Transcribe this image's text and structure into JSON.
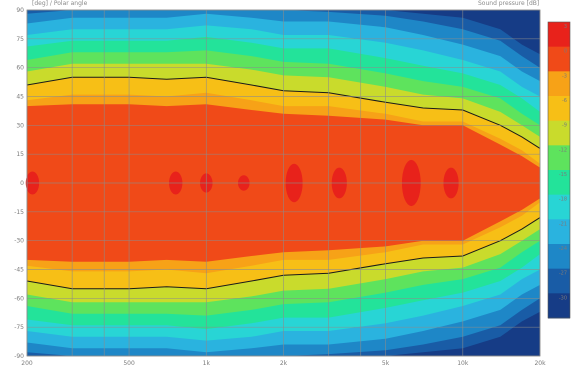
{
  "header": {
    "left_text": "[deg] / Polar angle",
    "right_text": "Sound pressure [dB]"
  },
  "colors": {
    "background": "#ffffff",
    "grid": "#8c8c8c",
    "contour_line": "#1a1a1a",
    "axis_label": "#7a7a7a"
  },
  "chart_data": {
    "type": "heatmap",
    "title": "",
    "xlabel": "",
    "ylabel": "[deg] / Polar angle",
    "colorbar_label": "Sound pressure [dB]",
    "x_scale": "log",
    "xlim": [
      200,
      20000
    ],
    "ylim": [
      -90,
      90
    ],
    "x_tick_values": [
      200,
      500,
      1000,
      2000,
      5000,
      10000,
      20000
    ],
    "x_tick_labels": [
      "200",
      "500",
      "1k",
      "2k",
      "5k",
      "10k",
      "20k"
    ],
    "y_tick_values": [
      90,
      75,
      60,
      45,
      30,
      15,
      0,
      -15,
      -30,
      -45,
      -60,
      -75,
      -90
    ],
    "y_tick_labels": [
      "90",
      "75",
      "60",
      "45",
      "30",
      "15",
      "0",
      "-15",
      "-30",
      "-45",
      "-60",
      "-75",
      "-90"
    ],
    "colorbar_levels": [
      3,
      0,
      -3,
      -6,
      -9,
      -12,
      -15,
      -18,
      -21,
      -24,
      -27,
      -30
    ],
    "colorbar_tick_labels": [
      "3",
      "0",
      "-3",
      "-6",
      "-9",
      "-12",
      "-15",
      "-18",
      "-21",
      "-24",
      "-27",
      "-30"
    ],
    "colorbar_colors": [
      "#e8221b",
      "#f04a18",
      "#f7a217",
      "#f7bf16",
      "#c9db2c",
      "#5ee35d",
      "#23e39a",
      "#28d5d5",
      "#2ab3df",
      "#1e87c7",
      "#195ca6",
      "#163c86"
    ],
    "contour_bands_deg": {
      "freq_hz": [
        200,
        300,
        500,
        700,
        1000,
        1500,
        2000,
        3000,
        5000,
        7000,
        10000,
        14000,
        17000,
        20000
      ],
      "level_0_dB": [
        40,
        41,
        41,
        40,
        41,
        38,
        36,
        35,
        33,
        30,
        30,
        20,
        14,
        8
      ],
      "level_m3_dB": [
        43,
        46,
        46,
        45,
        47,
        43,
        40,
        40,
        36,
        32,
        32,
        23,
        17,
        10
      ],
      "level_m6_dB": [
        51,
        55,
        55,
        54,
        55,
        51,
        48,
        47,
        42,
        39,
        38,
        30,
        24,
        18
      ],
      "level_m9_dB": [
        58,
        62,
        62,
        62,
        62,
        59,
        56,
        55,
        50,
        46,
        44,
        37,
        30,
        24
      ],
      "level_m12_dB": [
        64,
        68,
        68,
        68,
        69,
        66,
        63,
        62,
        57,
        53,
        50,
        44,
        36,
        30
      ],
      "level_m15_dB": [
        71,
        74,
        74,
        74,
        76,
        73,
        70,
        70,
        65,
        61,
        57,
        51,
        44,
        37
      ],
      "level_m18_dB": [
        77,
        80,
        80,
        80,
        82,
        80,
        77,
        77,
        73,
        69,
        64,
        58,
        50,
        45
      ],
      "level_m21_dB": [
        83,
        86,
        86,
        86,
        88,
        86,
        84,
        84,
        81,
        77,
        72,
        66,
        58,
        53
      ],
      "level_m24_dB": [
        88,
        90,
        90,
        90,
        90,
        90,
        90,
        89,
        87,
        84,
        80,
        74,
        66,
        60
      ],
      "level_m27_dB": [
        90,
        90,
        90,
        90,
        90,
        90,
        90,
        90,
        90,
        88,
        86,
        80,
        72,
        67
      ]
    },
    "grid": true,
    "legend": "colorbar-right"
  }
}
